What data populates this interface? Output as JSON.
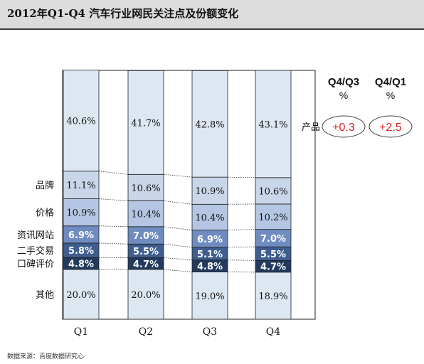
{
  "chart_data": {
    "type": "bar",
    "title": "2012年Q1-Q4 汽车行业网民关注点及份额变化",
    "categories": [
      "Q1",
      "Q2",
      "Q3",
      "Q4"
    ],
    "series": [
      {
        "name": "其他",
        "values": [
          20.0,
          20.0,
          19.0,
          18.9
        ],
        "labels": [
          "20.0%",
          "20.0%",
          "19.0%",
          "18.9%"
        ],
        "color": "#dde7f2"
      },
      {
        "name": "口碑评价",
        "values": [
          4.8,
          4.7,
          4.8,
          4.7
        ],
        "labels": [
          "4.8%",
          "4.7%",
          "4.8%",
          "4.7%"
        ],
        "color": "#233a5e"
      },
      {
        "name": "二手交易",
        "values": [
          5.8,
          5.5,
          5.1,
          5.5
        ],
        "labels": [
          "5.8%",
          "5.5%",
          "5.1%",
          "5.5%"
        ],
        "color": "#3f5e8f"
      },
      {
        "name": "资讯网站",
        "values": [
          6.9,
          7.0,
          6.9,
          7.0
        ],
        "labels": [
          "6.9%",
          "7.0%",
          "6.9%",
          "7.0%"
        ],
        "color": "#6f8cc0"
      },
      {
        "name": "价格",
        "values": [
          10.9,
          10.4,
          10.4,
          10.2
        ],
        "labels": [
          "10.9%",
          "10.4%",
          "10.4%",
          "10.2%"
        ],
        "color": "#b4c6e3"
      },
      {
        "name": "品牌",
        "values": [
          11.1,
          10.6,
          10.9,
          10.6
        ],
        "labels": [
          "11.1%",
          "10.6%",
          "10.9%",
          "10.6%"
        ],
        "color": "#c9d6ea"
      },
      {
        "name": "产品",
        "values": [
          40.6,
          41.7,
          42.8,
          43.1
        ],
        "labels": [
          "40.6%",
          "41.7%",
          "42.8%",
          "43.1%"
        ],
        "color": "#dde7f2"
      }
    ],
    "row_labels": [
      "其他",
      "口碑评价",
      "二手交易",
      "资讯网站",
      "价格",
      "品牌",
      "产品"
    ],
    "change_table": {
      "headers": [
        [
          "Q4/Q3",
          "%"
        ],
        [
          "Q4/Q1",
          "%"
        ]
      ],
      "row_label": "产品",
      "values": [
        "+0.3",
        "+2.5"
      ]
    },
    "ylim": [
      0,
      100
    ],
    "grid": false,
    "legend": "none"
  },
  "footnote": "数据来源：百度数据研究心"
}
